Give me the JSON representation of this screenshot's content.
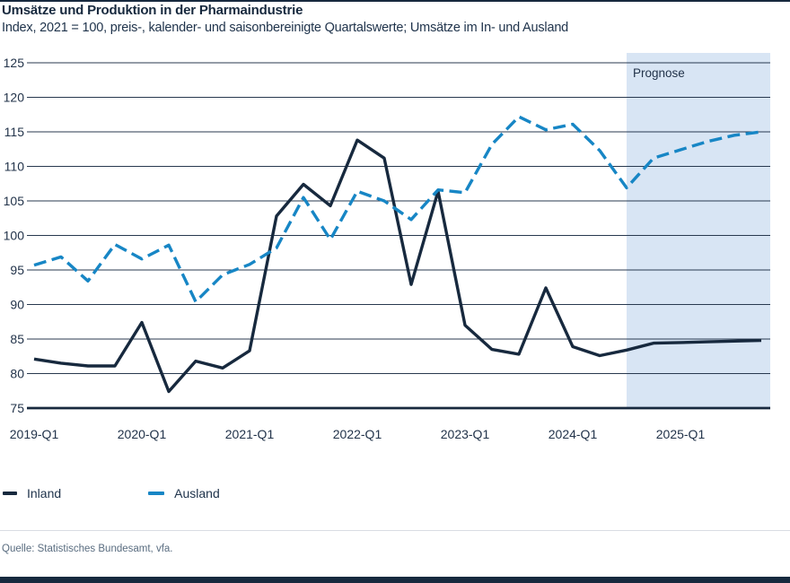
{
  "header": {
    "title": "Umsätze und Produktion in der Pharmaindustrie",
    "subtitle": "Index, 2021 = 100, preis-, kalender- und saisonbereinigte Quartalswerte; Umsätze im In- und Ausland"
  },
  "chart_data": {
    "type": "line",
    "x": [
      "2019-Q1",
      "2019-Q2",
      "2019-Q3",
      "2019-Q4",
      "2020-Q1",
      "2020-Q2",
      "2020-Q3",
      "2020-Q4",
      "2021-Q1",
      "2021-Q2",
      "2021-Q3",
      "2021-Q4",
      "2022-Q1",
      "2022-Q2",
      "2022-Q3",
      "2022-Q4",
      "2023-Q1",
      "2023-Q2",
      "2023-Q3",
      "2023-Q4",
      "2024-Q1",
      "2024-Q2",
      "2024-Q3",
      "2024-Q4",
      "2025-Q1",
      "2025-Q2",
      "2025-Q3",
      "2025-Q4"
    ],
    "series": [
      {
        "name": "Inland",
        "style": "solid",
        "color": "#17293e",
        "values": [
          82.1,
          81.5,
          81.1,
          81.1,
          87.4,
          77.4,
          81.8,
          80.8,
          83.3,
          102.8,
          107.4,
          104.3,
          113.8,
          111.2,
          92.9,
          106.4,
          87.0,
          83.5,
          82.8,
          92.4,
          83.9,
          82.6,
          83.4,
          84.4,
          84.5,
          84.6,
          84.7,
          84.8
        ]
      },
      {
        "name": "Ausland",
        "style": "dashed",
        "color": "#1786c5",
        "values": [
          95.7,
          96.9,
          93.4,
          98.7,
          96.6,
          98.6,
          90.4,
          94.3,
          95.8,
          98.2,
          105.5,
          99.4,
          106.4,
          105.0,
          102.3,
          106.6,
          106.2,
          113.2,
          117.2,
          115.3,
          116.1,
          112.3,
          106.9,
          111.2,
          112.4,
          113.6,
          114.5,
          115.0
        ]
      }
    ],
    "ylim": [
      75,
      125
    ],
    "yticks": [
      75,
      80,
      85,
      90,
      95,
      100,
      105,
      110,
      115,
      120,
      125
    ],
    "xtick_labels": [
      "2019-Q1",
      "2020-Q1",
      "2021-Q1",
      "2022-Q1",
      "2023-Q1",
      "2024-Q1",
      "2025-Q1"
    ],
    "xtick_every": 4,
    "grid": "horizontal",
    "legend_position": "bottom-left",
    "forecast": {
      "label": "Prognose",
      "start_index": 22,
      "band_color": "#d8e5f4"
    },
    "colors": {
      "axis_text": "#22334a",
      "gridline": "#28394f",
      "baseline": "#17293e"
    }
  },
  "footer": {
    "source": "Quelle: Statistisches Bundesamt, vfa."
  }
}
